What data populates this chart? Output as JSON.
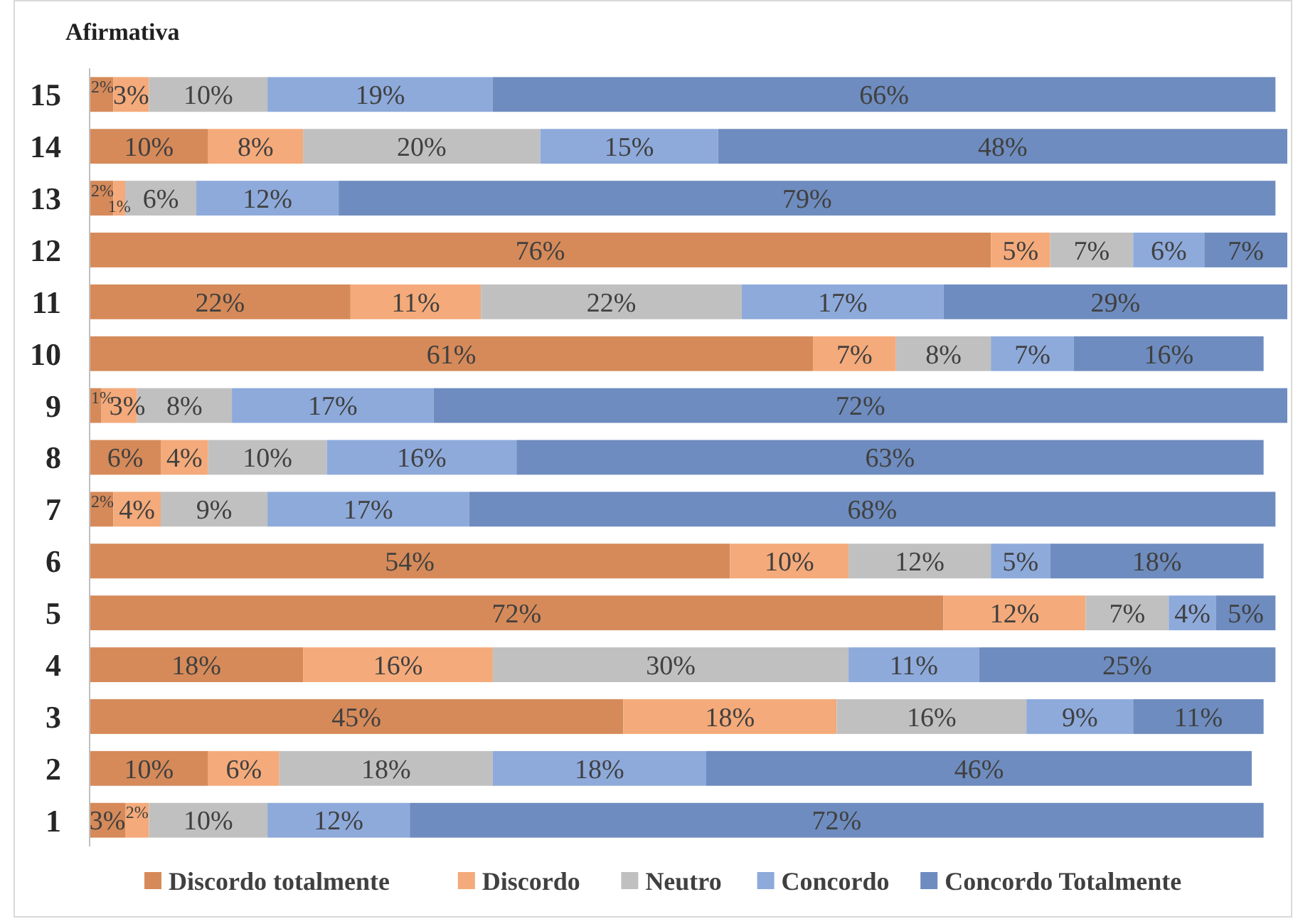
{
  "chart_data": {
    "type": "bar",
    "orientation": "horizontal",
    "stacked": true,
    "legend": "bottom",
    "ylabel": "Afirmativa",
    "categories": [
      "15",
      "14",
      "13",
      "12",
      "11",
      "10",
      "9",
      "8",
      "7",
      "6",
      "5",
      "4",
      "3",
      "2",
      "1"
    ],
    "series": [
      {
        "name": "Discordo totalmente",
        "color": "#d68a59",
        "values": [
          2,
          10,
          2,
          76,
          22,
          61,
          1,
          6,
          2,
          54,
          72,
          18,
          45,
          10,
          3
        ],
        "value_labels": [
          "2%",
          "10%",
          "2%",
          "76%",
          "22%",
          "61%",
          "1%",
          "6%",
          "2%",
          "54%",
          "72%",
          "18%",
          "45%",
          "10%",
          "3%"
        ]
      },
      {
        "name": "Discordo",
        "color": "#f4aa7a",
        "values": [
          3,
          8,
          1,
          5,
          11,
          7,
          3,
          4,
          4,
          10,
          12,
          16,
          18,
          6,
          2
        ],
        "value_labels": [
          "3%",
          "8%",
          "1%",
          "5%",
          "11%",
          "7%",
          "3%",
          "4%",
          "4%",
          "10%",
          "12%",
          "16%",
          "18%",
          "6%",
          "2%"
        ]
      },
      {
        "name": "Neutro",
        "color": "#c0c0c0",
        "values": [
          10,
          20,
          6,
          7,
          22,
          8,
          8,
          10,
          9,
          12,
          7,
          30,
          16,
          18,
          10
        ],
        "value_labels": [
          "10%",
          "20%",
          "6%",
          "7%",
          "22%",
          "8%",
          "8%",
          "10%",
          "9%",
          "12%",
          "7%",
          "30%",
          "16%",
          "18%",
          "10%"
        ]
      },
      {
        "name": "Concordo",
        "color": "#8eaadb",
        "values": [
          19,
          15,
          12,
          6,
          17,
          7,
          17,
          16,
          17,
          5,
          4,
          11,
          9,
          18,
          12
        ],
        "value_labels": [
          "19%",
          "15%",
          "12%",
          "6%",
          "17%",
          "7%",
          "17%",
          "16%",
          "17%",
          "5%",
          "4%",
          "11%",
          "9%",
          "18%",
          "12%"
        ]
      },
      {
        "name": "Concordo Totalmente",
        "color": "#6e8cbf",
        "values": [
          66,
          48,
          79,
          7,
          29,
          16,
          72,
          63,
          68,
          18,
          5,
          25,
          11,
          46,
          72
        ],
        "value_labels": [
          "66%",
          "48%",
          "79%",
          "7%",
          "29%",
          "16%",
          "72%",
          "63%",
          "68%",
          "18%",
          "5%",
          "25%",
          "11%",
          "46%",
          "72%"
        ]
      }
    ]
  }
}
